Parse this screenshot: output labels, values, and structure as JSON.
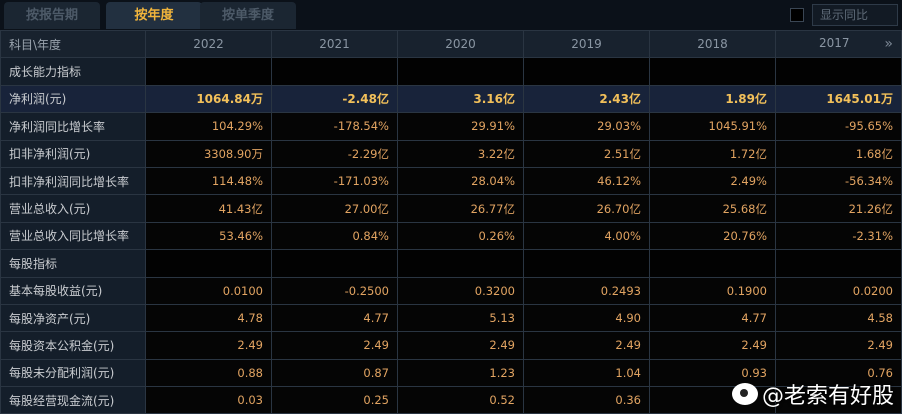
{
  "tabs": [
    {
      "label": "按报告期",
      "active": false
    },
    {
      "label": "按年度",
      "active": true
    },
    {
      "label": "按单季度",
      "active": false
    }
  ],
  "show_yoy_label": "显示同比",
  "header": {
    "label": "科目\\年度",
    "years": [
      "2022",
      "2021",
      "2020",
      "2019",
      "2018",
      "2017"
    ],
    "more_icon": "»"
  },
  "rows": [
    {
      "type": "section",
      "label": "成长能力指标",
      "values": [
        "",
        "",
        "",
        "",
        "",
        ""
      ]
    },
    {
      "type": "highlight",
      "label": "净利润(元)",
      "values": [
        "1064.84万",
        "-2.48亿",
        "3.16亿",
        "2.43亿",
        "1.89亿",
        "1645.01万"
      ]
    },
    {
      "type": "data",
      "label": "净利润同比增长率",
      "values": [
        "104.29%",
        "-178.54%",
        "29.91%",
        "29.03%",
        "1045.91%",
        "-95.65%"
      ]
    },
    {
      "type": "data",
      "label": "扣非净利润(元)",
      "values": [
        "3308.90万",
        "-2.29亿",
        "3.22亿",
        "2.51亿",
        "1.72亿",
        "1.68亿"
      ]
    },
    {
      "type": "data",
      "label": "扣非净利润同比增长率",
      "values": [
        "114.48%",
        "-171.03%",
        "28.04%",
        "46.12%",
        "2.49%",
        "-56.34%"
      ]
    },
    {
      "type": "data",
      "label": "营业总收入(元)",
      "values": [
        "41.43亿",
        "27.00亿",
        "26.77亿",
        "26.70亿",
        "25.68亿",
        "21.26亿"
      ]
    },
    {
      "type": "data",
      "label": "营业总收入同比增长率",
      "values": [
        "53.46%",
        "0.84%",
        "0.26%",
        "4.00%",
        "20.76%",
        "-2.31%"
      ]
    },
    {
      "type": "section",
      "label": "每股指标",
      "values": [
        "",
        "",
        "",
        "",
        "",
        ""
      ]
    },
    {
      "type": "data",
      "label": "基本每股收益(元)",
      "values": [
        "0.0100",
        "-0.2500",
        "0.3200",
        "0.2493",
        "0.1900",
        "0.0200"
      ]
    },
    {
      "type": "data",
      "label": "每股净资产(元)",
      "values": [
        "4.78",
        "4.77",
        "5.13",
        "4.90",
        "4.77",
        "4.58"
      ]
    },
    {
      "type": "data",
      "label": "每股资本公积金(元)",
      "values": [
        "2.49",
        "2.49",
        "2.49",
        "2.49",
        "2.49",
        "2.49"
      ]
    },
    {
      "type": "data",
      "label": "每股未分配利润(元)",
      "values": [
        "0.88",
        "0.87",
        "1.23",
        "1.04",
        "0.93",
        "0.76"
      ]
    },
    {
      "type": "data",
      "label": "每股经营现金流(元)",
      "values": [
        "0.03",
        "0.25",
        "0.52",
        "0.36",
        "",
        ""
      ]
    }
  ],
  "watermark": "@老索有好股"
}
